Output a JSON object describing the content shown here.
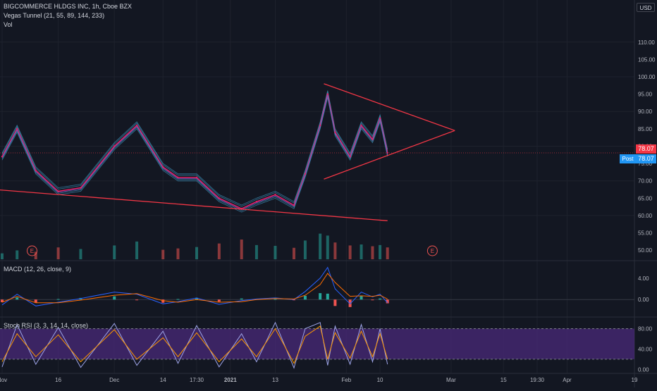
{
  "header": {
    "symbol_line": "BIGCOMMERCE HLDGS INC, 1h, Cboe BZX",
    "indicator_line": "Vegas Tunnel (21, 55, 89, 144, 233)",
    "volume_line": "Vol",
    "currency": "USD"
  },
  "price_tags": {
    "last": "78.07",
    "post_label": "Post",
    "post": "78.07",
    "last_color": "#f23645",
    "post_color": "#2196f3"
  },
  "earnings_marker": "E",
  "macd": {
    "label": "MACD (12, 26, close, 9)"
  },
  "stoch": {
    "label": "Stoch RSI (3, 3, 14, 14, close)"
  },
  "colors": {
    "background": "#131722",
    "grid": "#1e222d",
    "axis_text": "#b2b5be",
    "trendline": "#f23645",
    "tunnel": "#4fc3f7",
    "candle_up": "#26a69a",
    "candle_down": "#ef5350",
    "macd_line": "#2962ff",
    "signal_line": "#ff6d00",
    "stoch_band": "#4a2a7a",
    "stoch_k": "#9ea4e8",
    "stoch_d": "#ff9800"
  },
  "chart_data": [
    {
      "type": "line",
      "name": "price",
      "title": "BIGCOMMERCE HLDGS INC, 1h, Cboe BZX",
      "x_ticks": [
        "Nov",
        "16",
        "Dec",
        "14",
        "17:30",
        "2021",
        "13",
        "Feb",
        "10",
        "Mar",
        "15",
        "19:30",
        "Apr",
        "19"
      ],
      "y_ticks": [
        "110.00",
        "105.00",
        "100.00",
        "95.00",
        "90.00",
        "85.00",
        "80.00",
        "75.00",
        "70.00",
        "65.00",
        "60.00",
        "55.00",
        "50.00"
      ],
      "ylim": [
        48,
        113
      ],
      "grid": true,
      "x": [
        "Nov 1",
        "Nov 5",
        "Nov 10",
        "Nov 16",
        "Nov 22",
        "Dec 1",
        "Dec 7",
        "Dec 14",
        "Dec 18",
        "Dec 23",
        "Dec 29",
        "Jan 4",
        "Jan 8",
        "Jan 13",
        "Jan 18",
        "Jan 21",
        "Jan 25",
        "Jan 27",
        "Jan 29",
        "Feb 2",
        "Feb 5",
        "Feb 8",
        "Feb 10",
        "Feb 12"
      ],
      "values": [
        77,
        85,
        73,
        67,
        68,
        80,
        86,
        74,
        71,
        71,
        65,
        62,
        64,
        66,
        63,
        72,
        86,
        95,
        84,
        77,
        86,
        82,
        88,
        78.07
      ],
      "trendlines": [
        {
          "name": "descending support",
          "from": [
            "Oct 30",
            67.5
          ],
          "to": [
            "Feb 12",
            58.5
          ]
        },
        {
          "name": "triangle upper",
          "from": [
            "Jan 26",
            98
          ],
          "to": [
            "Mar 2",
            84.5
          ]
        },
        {
          "name": "triangle lower",
          "from": [
            "Jan 26",
            70.5
          ],
          "to": [
            "Mar 2",
            84.5
          ]
        }
      ],
      "volume": [
        30,
        45,
        38,
        60,
        52,
        70,
        90,
        48,
        55,
        62,
        80,
        100,
        72,
        68,
        58,
        95,
        130,
        120,
        85,
        70,
        75,
        66,
        72,
        60
      ],
      "earnings_markers": [
        "Nov 9",
        "Feb 24"
      ]
    },
    {
      "type": "line",
      "name": "MACD",
      "title": "MACD (12, 26, close, 9)",
      "y_ticks": [
        "4.00",
        "0.00"
      ],
      "ylim": [
        -3,
        7
      ],
      "series": [
        {
          "values": [
            -1.0,
            1.0,
            -1.2,
            -0.5,
            0.2,
            1.4,
            1.0,
            -0.8,
            -0.4,
            0.3,
            -0.9,
            -0.2,
            0.1,
            0.3,
            0.0,
            1.5,
            4.0,
            6.0,
            2.0,
            -0.8,
            1.4,
            0.5,
            1.0,
            -0.6
          ]
        },
        {
          "values": [
            -0.5,
            0.6,
            -0.6,
            -0.6,
            -0.1,
            0.8,
            1.1,
            -0.2,
            -0.5,
            0.0,
            -0.5,
            -0.4,
            0.0,
            0.2,
            0.1,
            0.8,
            2.8,
            4.9,
            3.2,
            0.6,
            0.7,
            0.6,
            0.8,
            0.1
          ]
        }
      ]
    },
    {
      "type": "line",
      "name": "Stoch RSI",
      "title": "Stoch RSI (3, 3, 14, 14, close)",
      "y_ticks": [
        "80.00",
        "40.00",
        "0.00"
      ],
      "ylim": [
        -5,
        100
      ],
      "band": [
        20,
        80
      ],
      "series": [
        {
          "values": [
            5,
            88,
            10,
            82,
            4,
            90,
            8,
            75,
            12,
            86,
            5,
            70,
            15,
            92,
            3,
            80,
            92,
            8,
            85,
            10,
            88,
            15,
            80,
            10
          ]
        },
        {
          "values": [
            15,
            70,
            25,
            68,
            15,
            78,
            20,
            62,
            25,
            72,
            15,
            60,
            25,
            80,
            12,
            65,
            85,
            20,
            72,
            22,
            75,
            25,
            70,
            20
          ]
        }
      ]
    }
  ]
}
